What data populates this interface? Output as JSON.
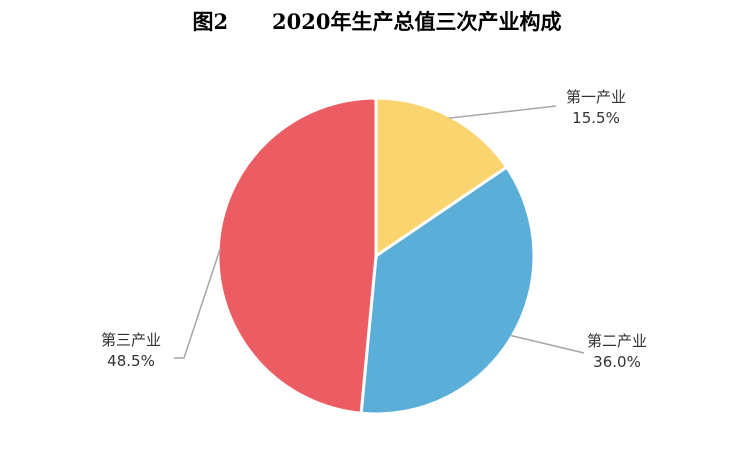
{
  "chart_data": {
    "type": "pie",
    "title": "图2      2020年生产总值三次产业构成",
    "slices": [
      {
        "name": "第一产业",
        "value": 15.5,
        "label": "15.5%",
        "color": "#FAD46E"
      },
      {
        "name": "第二产业",
        "value": 36.0,
        "label": "36.0%",
        "color": "#5BAED8"
      },
      {
        "name": "第三产业",
        "value": 48.5,
        "label": "48.5%",
        "color": "#EB5D62"
      }
    ],
    "start_angle": "12 o'clock",
    "direction": "clockwise",
    "slice_separator_color": "#ffffff",
    "legend": "none"
  }
}
